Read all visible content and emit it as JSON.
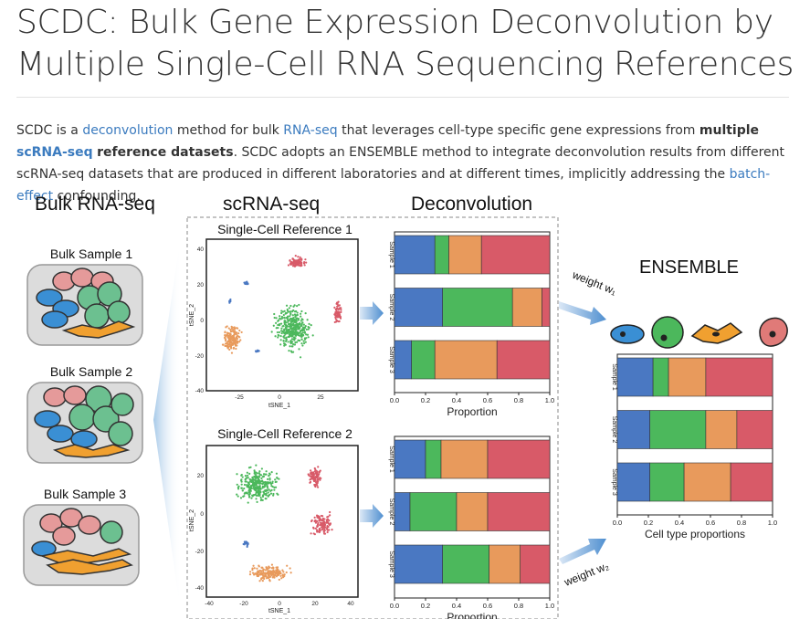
{
  "page": {
    "title": "SCDC: Bulk Gene Expression Deconvolution by Multiple Single-Cell RNA Sequencing References"
  },
  "intro": {
    "p1": "SCDC is a ",
    "link_deconvolution": "deconvolution",
    "p2": " method for bulk ",
    "link_rnaseq": "RNA-seq",
    "p3": " that leverages cell-type specific gene expressions from ",
    "bold_multiple": "multiple",
    "p4": " ",
    "bold_scrnaseq": "scRNA-seq",
    "p5": " ",
    "bold_reference": "reference datasets",
    "p6": ". SCDC adopts an ENSEMBLE method to integrate deconvolution results from different scRNA-seq datasets that are produced in different laboratories and at different times, implicitly addressing the ",
    "link_batch": "batch-effect",
    "p7": " confounding."
  },
  "figure": {
    "col_bulk": "Bulk RNA-seq",
    "col_sc": "scRNA-seq",
    "col_deconv": "Deconvolution",
    "ensemble": "ENSEMBLE",
    "bulk_samples": [
      "Bulk Sample 1",
      "Bulk Sample 2",
      "Bulk Sample 3"
    ],
    "references": [
      {
        "title": "Single-Cell Reference 1",
        "xlabel": "tSNE_1",
        "ylabel": "tSNE_2",
        "xticks": [
          "-25",
          "0",
          "25"
        ],
        "yticks": [
          "40",
          "20",
          "0",
          "-20",
          "-40"
        ]
      },
      {
        "title": "Single-Cell Reference 2",
        "xlabel": "tSNE_1",
        "ylabel": "tSNE_2",
        "xticks": [
          "-40",
          "-20",
          "0",
          "20",
          "40"
        ],
        "yticks": [
          "20",
          "0",
          "-20",
          "-40"
        ]
      }
    ],
    "weight1": "weight w₁",
    "weight2": "weight w₂",
    "colors": {
      "blue": "#4a78c2",
      "green": "#4cb85c",
      "orange": "#e89a5c",
      "red": "#d85a68",
      "gray_box": "#dcdcdc",
      "arrow": "#5b9bd5"
    }
  },
  "chart_data": [
    {
      "type": "bar",
      "orientation": "horizontal",
      "stacked": true,
      "categories": [
        "Sample 1",
        "Sample 2",
        "Sample 3"
      ],
      "series": [
        {
          "values": [
            0.26,
            0.31,
            0.11
          ]
        },
        {
          "values": [
            0.09,
            0.45,
            0.15
          ]
        },
        {
          "values": [
            0.21,
            0.19,
            0.4
          ]
        },
        {
          "values": [
            0.44,
            0.05,
            0.34
          ]
        }
      ],
      "xlabel": "Proportion",
      "xlim": [
        0,
        1
      ],
      "xticks": [
        "0.0",
        "0.2",
        "0.4",
        "0.6",
        "0.8",
        "1.0"
      ]
    },
    {
      "type": "bar",
      "orientation": "horizontal",
      "stacked": true,
      "categories": [
        "Sample 1",
        "Sample 2",
        "Sample 3"
      ],
      "series": [
        {
          "values": [
            0.2,
            0.1,
            0.31
          ]
        },
        {
          "values": [
            0.1,
            0.3,
            0.3
          ]
        },
        {
          "values": [
            0.3,
            0.2,
            0.2
          ]
        },
        {
          "values": [
            0.4,
            0.4,
            0.19
          ]
        }
      ],
      "xlabel": "Proportion",
      "xlim": [
        0,
        1
      ],
      "xticks": [
        "0.0",
        "0.2",
        "0.4",
        "0.6",
        "0.8",
        "1.0"
      ]
    },
    {
      "type": "bar",
      "orientation": "horizontal",
      "stacked": true,
      "categories": [
        "Sample 1",
        "Sample 2",
        "Sample 3"
      ],
      "series": [
        {
          "values": [
            0.23,
            0.21,
            0.21
          ]
        },
        {
          "values": [
            0.1,
            0.36,
            0.22
          ]
        },
        {
          "values": [
            0.24,
            0.2,
            0.3
          ]
        },
        {
          "values": [
            0.43,
            0.23,
            0.27
          ]
        }
      ],
      "xlabel": "Cell type proportions",
      "xlim": [
        0,
        1
      ],
      "xticks": [
        "0.0",
        "0.2",
        "0.4",
        "0.6",
        "0.8",
        "1.0"
      ]
    }
  ]
}
